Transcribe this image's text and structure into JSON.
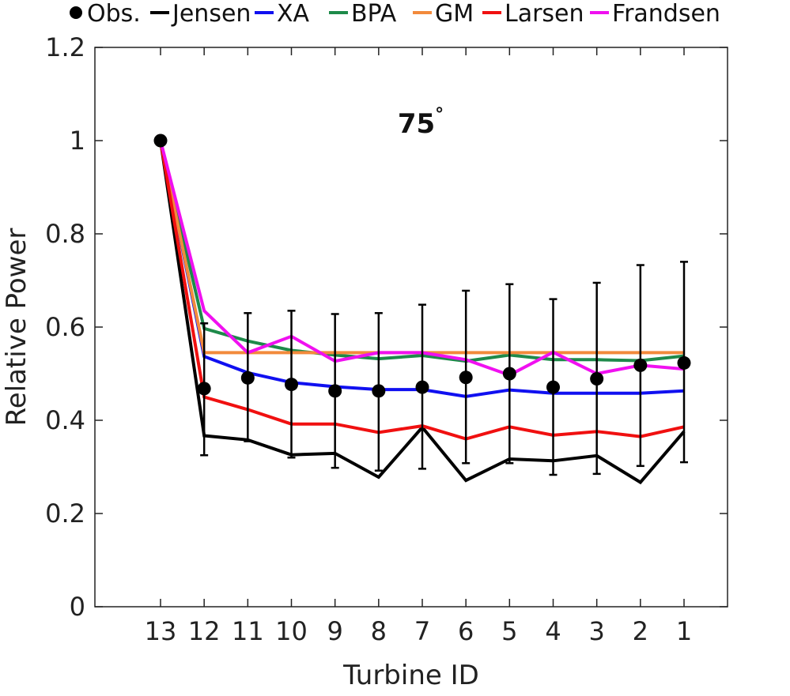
{
  "chart_data": {
    "type": "line",
    "title": "",
    "annotation": "75",
    "annotation_unit": "°",
    "xlabel": "Turbine ID",
    "ylabel": "Relative Power",
    "x": [
      "13",
      "12",
      "11",
      "10",
      "9",
      "8",
      "7",
      "6",
      "5",
      "4",
      "3",
      "2",
      "1"
    ],
    "ylim": [
      0,
      1.2
    ],
    "yticks": [
      "0",
      "0.2",
      "0.4",
      "0.6",
      "0.8",
      "1",
      "1.2"
    ],
    "yticks_values": [
      0,
      0.2,
      0.4,
      0.6,
      0.8,
      1.0,
      1.2
    ],
    "grid": false,
    "legend_position": "top",
    "observations": {
      "name": "Obs.",
      "values": [
        1.0,
        0.468,
        0.491,
        0.477,
        0.463,
        0.463,
        0.471,
        0.492,
        0.5,
        0.471,
        0.489,
        0.518,
        0.523
      ],
      "err_low": [
        1.0,
        0.325,
        0.355,
        0.32,
        0.298,
        0.292,
        0.296,
        0.308,
        0.308,
        0.283,
        0.285,
        0.302,
        0.31
      ],
      "err_high": [
        1.0,
        0.608,
        0.63,
        0.635,
        0.628,
        0.63,
        0.648,
        0.678,
        0.692,
        0.66,
        0.695,
        0.733,
        0.74
      ],
      "color": "#000000"
    },
    "series": [
      {
        "name": "Jensen",
        "color": "#000000",
        "values": [
          1.0,
          0.367,
          0.358,
          0.326,
          0.329,
          0.278,
          0.385,
          0.271,
          0.317,
          0.313,
          0.324,
          0.267,
          0.376
        ]
      },
      {
        "name": "XA",
        "color": "#1010f0",
        "values": [
          1.0,
          0.537,
          0.502,
          0.481,
          0.472,
          0.466,
          0.466,
          0.451,
          0.465,
          0.458,
          0.458,
          0.458,
          0.463
        ]
      },
      {
        "name": "BPA",
        "color": "#1e8a4a",
        "values": [
          1.0,
          0.597,
          0.57,
          0.55,
          0.54,
          0.532,
          0.539,
          0.527,
          0.54,
          0.53,
          0.53,
          0.528,
          0.538
        ]
      },
      {
        "name": "GM",
        "color": "#f28a3c",
        "values": [
          1.0,
          0.545,
          0.545,
          0.545,
          0.545,
          0.545,
          0.545,
          0.545,
          0.545,
          0.545,
          0.545,
          0.545,
          0.545
        ]
      },
      {
        "name": "Larsen",
        "color": "#f01010",
        "values": [
          1.0,
          0.45,
          0.423,
          0.392,
          0.392,
          0.374,
          0.388,
          0.36,
          0.386,
          0.368,
          0.376,
          0.365,
          0.386
        ]
      },
      {
        "name": "Frandsen",
        "color": "#f010f0",
        "values": [
          1.0,
          0.635,
          0.545,
          0.58,
          0.527,
          0.545,
          0.545,
          0.53,
          0.497,
          0.546,
          0.5,
          0.518,
          0.51
        ]
      }
    ]
  }
}
